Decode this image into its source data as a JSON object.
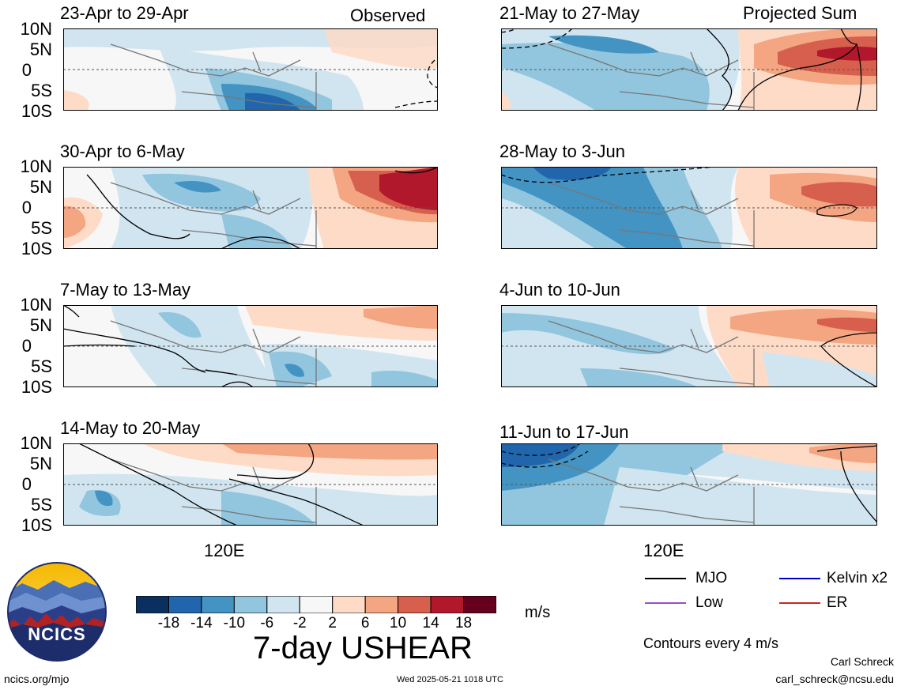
{
  "panels": [
    {
      "period": "23-Apr to 29-Apr",
      "tag": "Observed"
    },
    {
      "period": "30-Apr to 6-May",
      "tag": ""
    },
    {
      "period": "7-May to 13-May",
      "tag": ""
    },
    {
      "period": "14-May to 20-May",
      "tag": ""
    },
    {
      "period": "21-May to 27-May",
      "tag": "Projected Sum"
    },
    {
      "period": "28-May to 3-Jun",
      "tag": ""
    },
    {
      "period": "4-Jun to 10-Jun",
      "tag": ""
    },
    {
      "period": "11-Jun to 17-Jun",
      "tag": ""
    }
  ],
  "y_ticks": [
    "10N",
    "5N",
    "0",
    "5S",
    "10S"
  ],
  "x_tick": "120E",
  "colorbar": {
    "ticks": [
      "-18",
      "-14",
      "-10",
      "-6",
      "-2",
      "2",
      "6",
      "10",
      "14",
      "18"
    ],
    "colors": [
      "#0b3060",
      "#2166ac",
      "#4393c3",
      "#92c5de",
      "#d1e5f0",
      "#f7f7f7",
      "#fddbc7",
      "#f4a582",
      "#d6604d",
      "#b2182b",
      "#67001f"
    ],
    "units": "m/s"
  },
  "main_title": "7-day USHEAR",
  "legend": {
    "items": [
      {
        "label": "MJO",
        "color": "#000000"
      },
      {
        "label": "Kelvin x2",
        "color": "#0000cc"
      },
      {
        "label": "Low",
        "color": "#9b4dca"
      },
      {
        "label": "ER",
        "color": "#cc2222"
      }
    ],
    "note": "Contours every 4 m/s"
  },
  "logo": {
    "text": "NCICS"
  },
  "footer": {
    "url": "ncics.org/mjo",
    "timestamp": "Wed 2025-05-21 1018 UTC",
    "author": "Carl Schreck",
    "email": "carl_schreck@ncsu.edu"
  }
}
